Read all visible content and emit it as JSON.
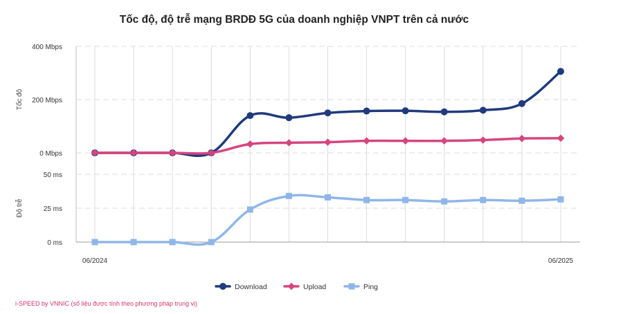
{
  "title": "Tốc độ, độ trễ mạng BRDĐ 5G của doanh nghiệp VNPT trên cả nước",
  "footnote": "i-SPEED by VNNIC (số liệu được tính theo phương pháp trung vị)",
  "colors": {
    "download": "#1f3a7d",
    "upload": "#d6457f",
    "ping": "#8fb6e8",
    "grid": "#dcdcdc"
  },
  "chart_data": [
    {
      "type": "line",
      "ylabel": "Tốc độ",
      "ylim": [
        0,
        400
      ],
      "yticks": [
        0,
        200,
        400
      ],
      "ytick_labels": [
        "0 Mbps",
        "200 Mbps",
        "400 Mbps"
      ],
      "grid": true,
      "x_count": 13,
      "x_tick_labels": [
        {
          "index": 0,
          "label": "06/2024"
        },
        {
          "index": 12,
          "label": "06/2025"
        }
      ],
      "series": [
        {
          "name": "Download",
          "marker": "circle",
          "values": [
            0,
            0,
            0,
            0,
            140,
            132,
            150,
            157,
            158,
            154,
            160,
            185,
            306
          ]
        },
        {
          "name": "Upload",
          "marker": "diamond",
          "values": [
            0,
            0,
            0,
            0,
            33,
            38,
            40,
            45,
            45,
            45,
            48,
            54,
            55
          ]
        }
      ]
    },
    {
      "type": "line",
      "ylabel": "Độ trễ",
      "ylim": [
        0,
        50
      ],
      "yticks": [
        0,
        25,
        50
      ],
      "ytick_labels": [
        "0 ms",
        "25 ms",
        "50 ms"
      ],
      "grid": true,
      "x_count": 13,
      "x_tick_labels": [
        {
          "index": 0,
          "label": "06/2024"
        },
        {
          "index": 12,
          "label": "06/2025"
        }
      ],
      "series": [
        {
          "name": "Ping",
          "marker": "square",
          "values": [
            0,
            0,
            0,
            0,
            24,
            34,
            33,
            31,
            31,
            30,
            31,
            30.5,
            31.5
          ]
        }
      ]
    }
  ],
  "legend": {
    "placement": "bottom",
    "items": [
      {
        "label": "Download",
        "marker": "circle",
        "color_key": "download"
      },
      {
        "label": "Upload",
        "marker": "diamond",
        "color_key": "upload"
      },
      {
        "label": "Ping",
        "marker": "square",
        "color_key": "ping"
      }
    ]
  }
}
